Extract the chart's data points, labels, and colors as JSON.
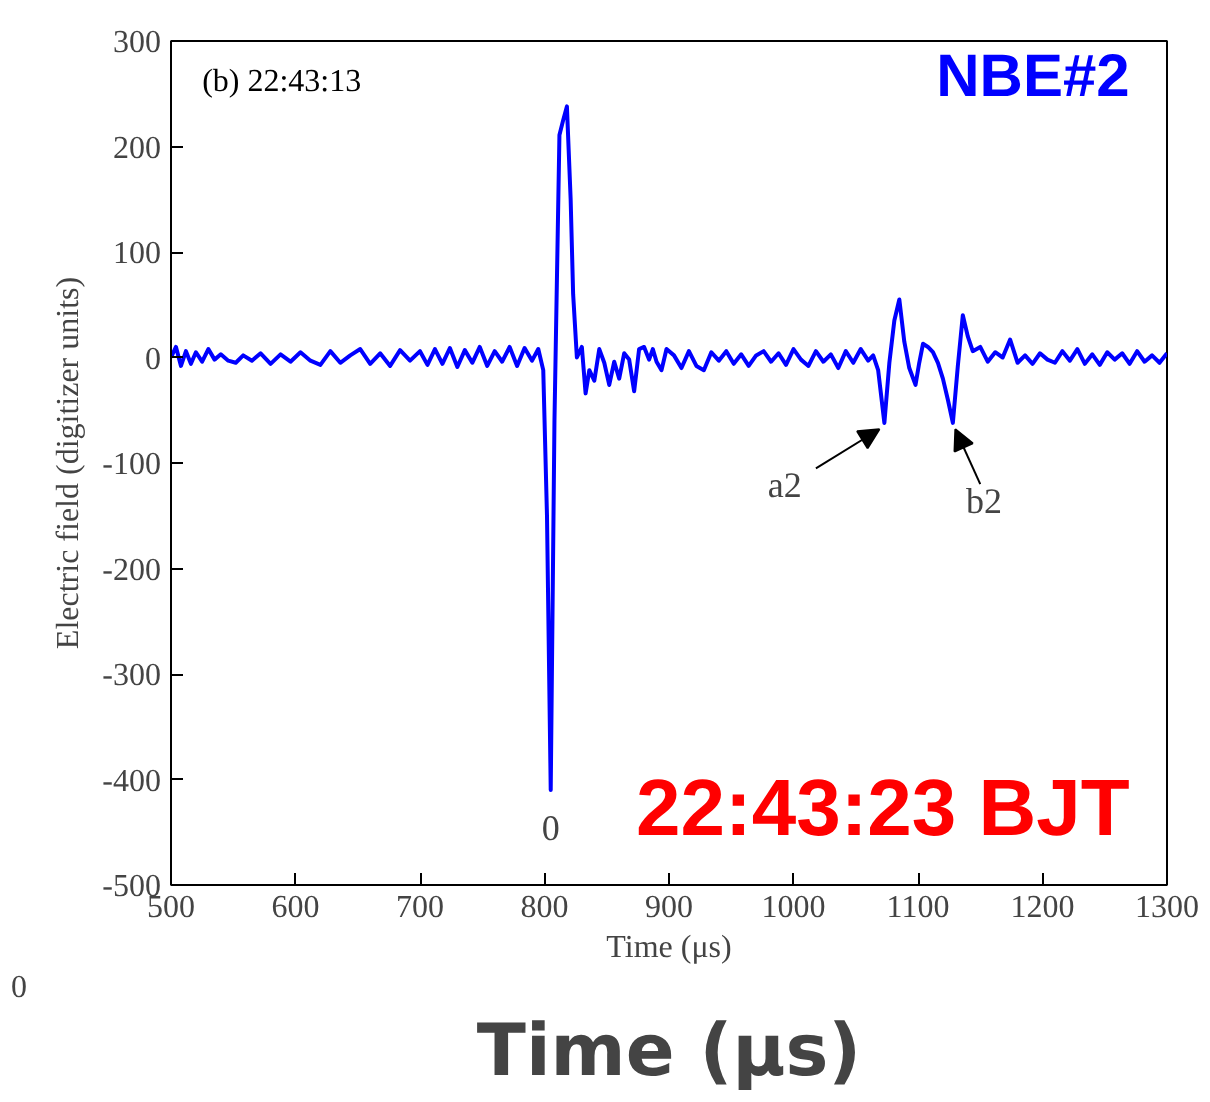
{
  "chart_data": {
    "type": "line",
    "xlabel": "Time (μs)",
    "ylabel": "Electric field (digitizer units)",
    "xlim": [
      500,
      1300
    ],
    "ylim": [
      -500,
      300
    ],
    "xticks": [
      500,
      600,
      700,
      800,
      900,
      1000,
      1100,
      1200,
      1300
    ],
    "yticks": [
      -500,
      -400,
      -300,
      -200,
      -100,
      0,
      100,
      200,
      300
    ],
    "grid": false,
    "line_style": "solid",
    "marker": "none",
    "series": [
      {
        "color": "#0000ff",
        "x": [
          500,
          504,
          508,
          512,
          516,
          520,
          525,
          530,
          535,
          540,
          546,
          552,
          558,
          565,
          572,
          580,
          588,
          596,
          604,
          612,
          620,
          628,
          636,
          644,
          652,
          660,
          668,
          676,
          684,
          692,
          700,
          706,
          712,
          718,
          724,
          730,
          736,
          742,
          748,
          754,
          760,
          766,
          772,
          778,
          784,
          790,
          795,
          799,
          802,
          805,
          808,
          812,
          815,
          818,
          821,
          823,
          826,
          830,
          833,
          836,
          840,
          844,
          848,
          852,
          856,
          860,
          864,
          868,
          872,
          876,
          880,
          884,
          887,
          890,
          894,
          898,
          904,
          910,
          916,
          922,
          928,
          934,
          940,
          946,
          952,
          958,
          964,
          970,
          976,
          982,
          988,
          994,
          1000,
          1006,
          1012,
          1018,
          1024,
          1030,
          1036,
          1042,
          1048,
          1054,
          1060,
          1064,
          1068,
          1073,
          1077,
          1081,
          1085,
          1089,
          1093,
          1098,
          1101,
          1104,
          1108,
          1112,
          1116,
          1120,
          1124,
          1128,
          1132,
          1136,
          1140,
          1144,
          1150,
          1156,
          1162,
          1168,
          1174,
          1180,
          1186,
          1192,
          1198,
          1204,
          1210,
          1216,
          1222,
          1228,
          1234,
          1240,
          1246,
          1252,
          1258,
          1264,
          1270,
          1276,
          1282,
          1288,
          1294,
          1300
        ],
        "values": [
          0,
          10,
          -8,
          6,
          -6,
          5,
          -4,
          8,
          -2,
          3,
          -3,
          -5,
          2,
          -3,
          4,
          -6,
          3,
          -4,
          5,
          -3,
          -7,
          6,
          -5,
          2,
          8,
          -6,
          4,
          -8,
          7,
          -3,
          6,
          -7,
          8,
          -6,
          9,
          -9,
          7,
          -5,
          10,
          -8,
          6,
          -4,
          10,
          -8,
          9,
          -3,
          8,
          -12,
          -150,
          -410,
          -60,
          211,
          225,
          238,
          150,
          60,
          0,
          10,
          -34,
          -12,
          -22,
          8,
          -5,
          -26,
          -4,
          -20,
          4,
          -2,
          -32,
          8,
          10,
          -2,
          8,
          -4,
          -12,
          8,
          2,
          -10,
          6,
          -8,
          -12,
          5,
          -3,
          6,
          -6,
          3,
          -8,
          2,
          6,
          -4,
          4,
          -7,
          8,
          -2,
          -8,
          6,
          -4,
          3,
          -10,
          6,
          -5,
          8,
          -3,
          2,
          -12,
          -62,
          -5,
          35,
          55,
          15,
          -10,
          -26,
          -5,
          13,
          10,
          5,
          -5,
          -20,
          -40,
          -62,
          -8,
          40,
          20,
          6,
          10,
          -4,
          5,
          0,
          17,
          -5,
          2,
          -6,
          4,
          -2,
          -5,
          6,
          -3,
          8,
          -6,
          3,
          -7,
          5,
          -2,
          4,
          -6,
          6,
          -4,
          2,
          -5,
          4
        ]
      }
    ],
    "annotations": [
      "(b) 22:43:13",
      "NBE#2",
      "22:43:23 BJT",
      {
        "text": "0",
        "x": 805,
        "y": -410
      },
      {
        "text": "a2",
        "x": 1073,
        "y": -62
      },
      {
        "text": "b2",
        "x": 1128,
        "y": -62
      },
      "0",
      "Time (μs)"
    ]
  }
}
